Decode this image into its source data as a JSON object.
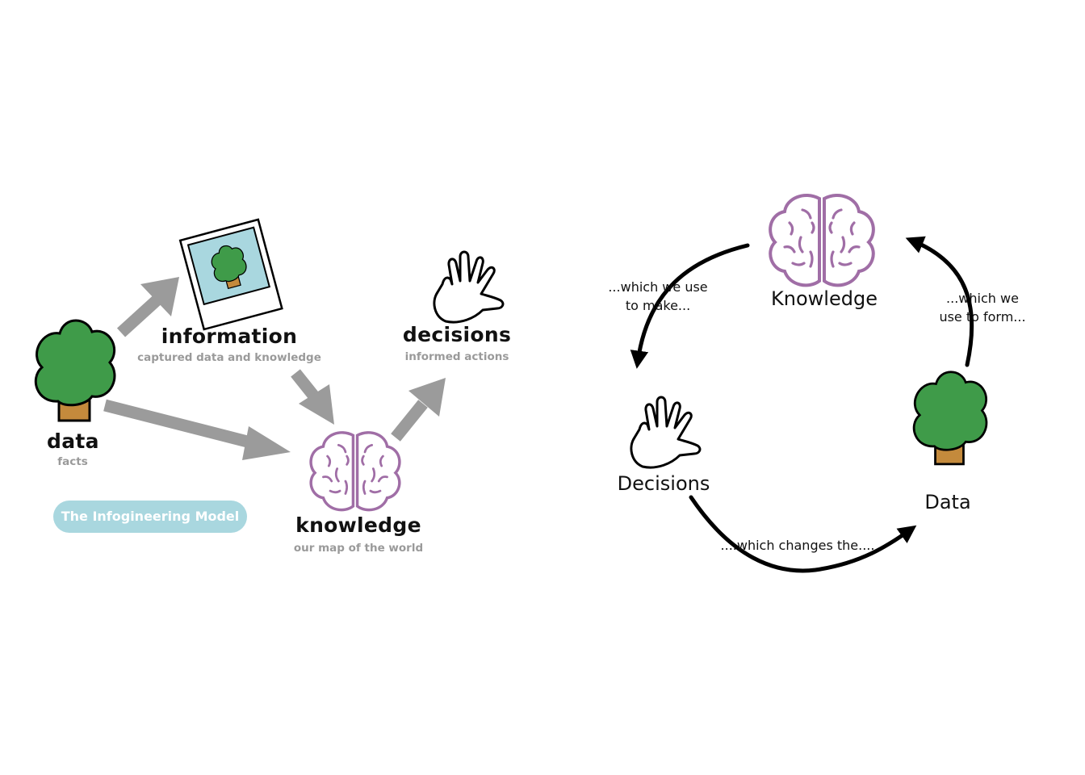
{
  "model": {
    "title": "The Infogineering Model",
    "nodes": {
      "data": {
        "label": "data",
        "sub": "facts"
      },
      "information": {
        "label": "information",
        "sub": "captured data and knowledge"
      },
      "knowledge": {
        "label": "knowledge",
        "sub": "our map of the world"
      },
      "decisions": {
        "label": "decisions",
        "sub": "informed actions"
      }
    }
  },
  "cycle": {
    "nodes": {
      "knowledge": "Knowledge",
      "decisions": "Decisions",
      "data": "Data"
    },
    "captions": {
      "knowledge_to_decisions_1": "...which we use",
      "knowledge_to_decisions_2": "to make...",
      "decisions_to_data": "....which changes the....",
      "data_to_knowledge_1": "...which we",
      "data_to_knowledge_2": "use to form..."
    }
  },
  "colors": {
    "tree_green": "#3f9b49",
    "trunk_brown": "#c48a3c",
    "brain_purple": "#a06ea6",
    "arrow_gray": "#9b9b9b",
    "photo_sky": "#a9d7df",
    "pill_blue": "#a9d7df"
  },
  "icons": [
    "tree-icon",
    "photo-icon",
    "brain-icon",
    "hand-icon"
  ]
}
